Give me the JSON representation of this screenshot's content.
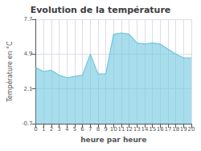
{
  "chart_data": {
    "type": "area",
    "title": "Evolution de la température",
    "xlabel": "heure par heure",
    "ylabel": "Température en °C",
    "x": [
      0,
      1,
      2,
      3,
      4,
      5,
      6,
      7,
      8,
      9,
      10,
      11,
      12,
      13,
      14,
      15,
      16,
      17,
      18,
      19,
      20
    ],
    "values": [
      3.8,
      3.5,
      3.6,
      3.2,
      3.0,
      3.1,
      3.2,
      4.9,
      3.3,
      3.3,
      6.5,
      6.6,
      6.5,
      5.8,
      5.7,
      5.8,
      5.7,
      5.3,
      4.9,
      4.6,
      4.6
    ],
    "color": "#6ec6e0",
    "xlim": [
      0,
      20
    ],
    "xticks": [
      0,
      1,
      2,
      3,
      4,
      5,
      6,
      7,
      8,
      9,
      10,
      11,
      12,
      13,
      14,
      15,
      16,
      17,
      18,
      19,
      20
    ],
    "ylim": [
      -0.7,
      7.7
    ],
    "yticks": [
      -0.7,
      2.1,
      4.9,
      7.7
    ],
    "grid": true
  }
}
